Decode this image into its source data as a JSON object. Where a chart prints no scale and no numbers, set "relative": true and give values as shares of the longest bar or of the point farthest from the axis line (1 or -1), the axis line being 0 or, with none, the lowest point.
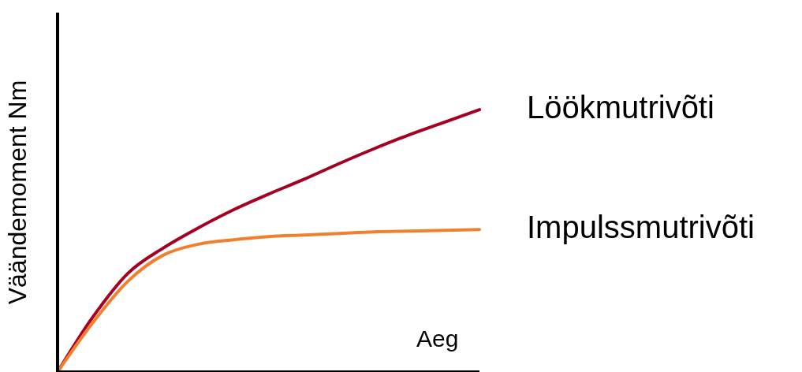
{
  "chart_data": {
    "type": "line",
    "relative": true,
    "xlabel": "Aeg",
    "ylabel": "Väändemoment Nm",
    "legend": false,
    "grid": false,
    "categories": [
      null,
      null,
      null,
      null,
      null,
      null,
      null,
      null,
      null,
      null,
      null,
      null,
      null
    ],
    "series": [
      {
        "name": "Löökmutrivõti",
        "color": "#a50021",
        "values": [
          0,
          0.209,
          0.376,
          0.472,
          0.549,
          0.618,
          0.678,
          0.734,
          0.794,
          0.851,
          0.904,
          0.952,
          1
        ]
      },
      {
        "name": "Impulssmutrivõti",
        "color": "#f08030",
        "values": [
          0,
          0.188,
          0.346,
          0.445,
          0.487,
          0.504,
          0.516,
          0.522,
          0.528,
          0.534,
          0.537,
          0.54,
          0.543
        ]
      }
    ]
  }
}
